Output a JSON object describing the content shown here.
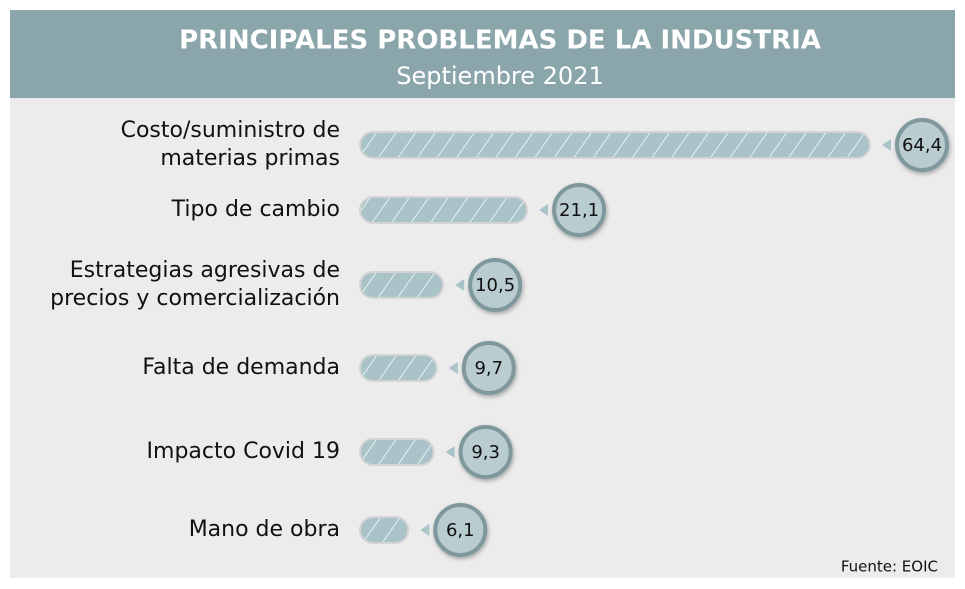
{
  "chart_data": {
    "type": "bar",
    "orientation": "horizontal",
    "title": "PRINCIPALES PROBLEMAS DE LA INDUSTRIA",
    "subtitle": "Septiembre 2021",
    "categories": [
      [
        "Costo/suministro de",
        "materias primas"
      ],
      [
        "Tipo de cambio"
      ],
      [
        "Estrategias agresivas de",
        "precios y comercialización"
      ],
      [
        "Falta de demanda"
      ],
      [
        "Impacto Covid 19"
      ],
      [
        "Mano de obra"
      ]
    ],
    "values": [
      64.4,
      21.1,
      10.5,
      9.7,
      9.3,
      6.1
    ],
    "value_labels": [
      "64,4",
      "21,1",
      "10,5",
      "9,7",
      "9,3",
      "6,1"
    ],
    "color": "#a9c3c8",
    "source": "Fuente: EOIC"
  }
}
